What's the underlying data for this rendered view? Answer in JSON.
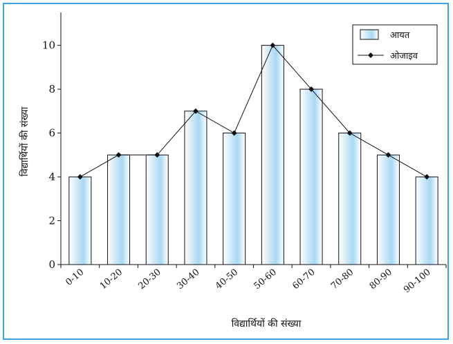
{
  "chart_data": {
    "type": "bar",
    "categories": [
      "0-10",
      "10-20",
      "20-30",
      "30-40",
      "40-50",
      "50-60",
      "60-70",
      "70-80",
      "80-90",
      "90-100"
    ],
    "series": [
      {
        "name": "आयत",
        "type": "bar",
        "values": [
          4,
          5,
          5,
          7,
          6,
          10,
          8,
          6,
          5,
          4
        ]
      },
      {
        "name": "ओजाइव",
        "type": "line",
        "values": [
          4,
          5,
          5,
          7,
          6,
          10,
          8,
          6,
          5,
          4
        ]
      }
    ],
    "xlabel": "विद्यार्थियों की संख्या",
    "ylabel": "विद्यार्थियों की संख्या",
    "ylim": [
      0,
      11.5
    ],
    "yticks": [
      0,
      2,
      4,
      6,
      8,
      10
    ],
    "grid": false,
    "legend_position": "top-right",
    "colors": {
      "bar_edge": "#111111",
      "bar_light": "#ffffff",
      "bar_mid": "#a9d8f2",
      "line": "#111111",
      "frame": "#3fa3dc"
    }
  }
}
